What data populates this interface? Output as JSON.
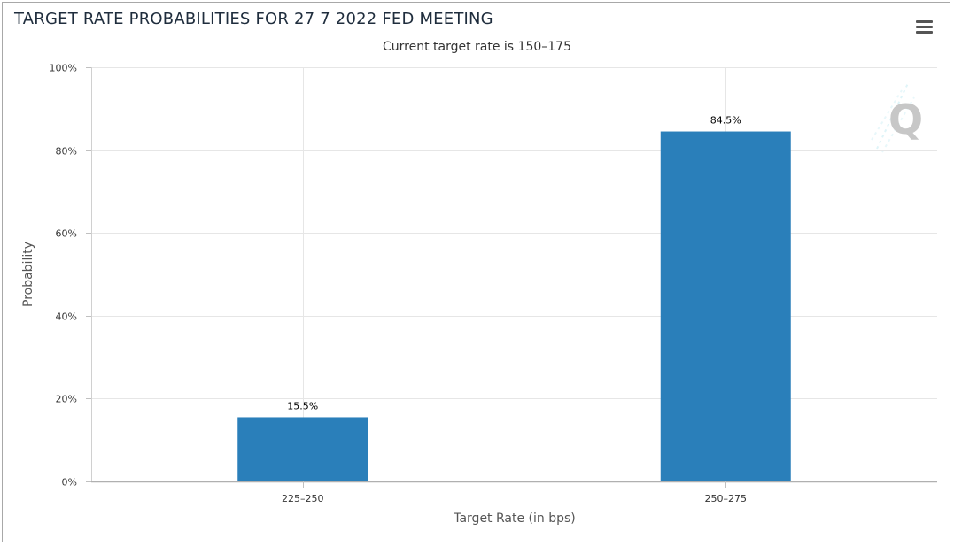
{
  "header": {
    "title": "TARGET RATE PROBABILITIES FOR 27 7 2022 FED MEETING",
    "subtitle": "Current target rate is 150–175"
  },
  "toolbar": {
    "menu_icon": "hamburger-menu-icon"
  },
  "watermark": {
    "icon": "q-logo-watermark"
  },
  "colors": {
    "bar": "#2a7fba",
    "grid": "#e6e6e6",
    "axis": "#ccd6eb"
  },
  "chart_data": {
    "type": "bar",
    "categories": [
      "225–250",
      "250–275"
    ],
    "values": [
      15.5,
      84.5
    ],
    "data_labels": [
      "15.5%",
      "84.5%"
    ],
    "title": "TARGET RATE PROBABILITIES FOR 27 7 2022 FED MEETING",
    "subtitle": "Current target rate is 150–175",
    "xlabel": "Target Rate (in bps)",
    "ylabel": "Probability",
    "ylim": [
      0,
      100
    ],
    "yticks": [
      0,
      20,
      40,
      60,
      80,
      100
    ],
    "ytick_labels": [
      "0%",
      "20%",
      "40%",
      "60%",
      "80%",
      "100%"
    ],
    "grid": true,
    "legend": "none"
  }
}
